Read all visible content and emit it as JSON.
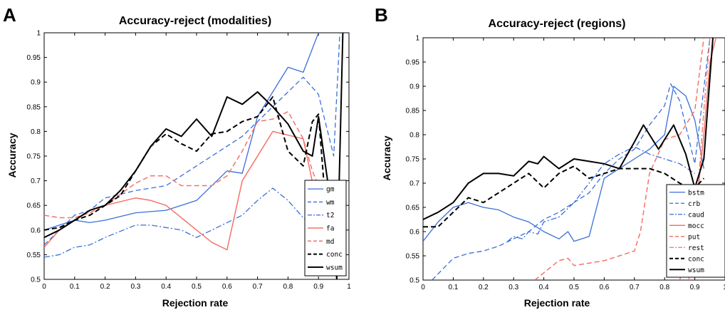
{
  "chart_data": [
    {
      "panel": "A",
      "type": "line",
      "title": "Accuracy-reject (modalities)",
      "xlabel": "Rejection rate",
      "ylabel": "Accuracy",
      "xlim": [
        0,
        1
      ],
      "ylim": [
        0.5,
        1
      ],
      "xticks": [
        "0",
        "0.1",
        "0.2",
        "0.3",
        "0.4",
        "0.5",
        "0.6",
        "0.7",
        "0.8",
        "0.9",
        "1"
      ],
      "yticks": [
        "0.5",
        "0.55",
        "0.6",
        "0.65",
        "0.7",
        "0.75",
        "0.8",
        "0.85",
        "0.9",
        "0.95",
        "1"
      ],
      "legend_position": "bottom-right",
      "series": [
        {
          "name": "gm",
          "color": "#3a6fd8",
          "dash": "solid",
          "width": 1.3,
          "x": [
            0,
            0.05,
            0.1,
            0.15,
            0.2,
            0.3,
            0.4,
            0.5,
            0.6,
            0.65,
            0.7,
            0.8,
            0.85,
            0.9
          ],
          "y": [
            0.6,
            0.61,
            0.62,
            0.615,
            0.62,
            0.635,
            0.64,
            0.66,
            0.72,
            0.715,
            0.83,
            0.93,
            0.92,
            1.0
          ]
        },
        {
          "name": "wm",
          "color": "#3a6fd8",
          "dash": "dashed",
          "width": 1.3,
          "x": [
            0,
            0.05,
            0.1,
            0.15,
            0.2,
            0.3,
            0.4,
            0.5,
            0.6,
            0.65,
            0.7,
            0.8,
            0.85,
            0.9,
            0.95,
            0.97
          ],
          "y": [
            0.57,
            0.6,
            0.63,
            0.64,
            0.665,
            0.68,
            0.69,
            0.73,
            0.77,
            0.79,
            0.82,
            0.88,
            0.91,
            0.875,
            0.75,
            1.0
          ]
        },
        {
          "name": "t2",
          "color": "#3a6fd8",
          "dash": "dashdot",
          "width": 1.3,
          "x": [
            0,
            0.05,
            0.1,
            0.15,
            0.2,
            0.3,
            0.35,
            0.4,
            0.45,
            0.5,
            0.55,
            0.6,
            0.65,
            0.7,
            0.75,
            0.8,
            0.85,
            0.9
          ],
          "y": [
            0.545,
            0.55,
            0.565,
            0.57,
            0.585,
            0.61,
            0.61,
            0.605,
            0.6,
            0.585,
            0.6,
            0.615,
            0.63,
            0.66,
            0.685,
            0.66,
            0.625,
            0.6
          ]
        },
        {
          "name": "fa",
          "color": "#f4736a",
          "dash": "solid",
          "width": 1.5,
          "x": [
            0,
            0.05,
            0.1,
            0.15,
            0.2,
            0.3,
            0.35,
            0.4,
            0.5,
            0.55,
            0.6,
            0.65,
            0.75,
            0.85,
            0.92
          ],
          "y": [
            0.565,
            0.6,
            0.62,
            0.64,
            0.65,
            0.665,
            0.66,
            0.65,
            0.6,
            0.575,
            0.56,
            0.7,
            0.8,
            0.785,
            0.58
          ]
        },
        {
          "name": "md",
          "color": "#f4736a",
          "dash": "dashed",
          "width": 1.5,
          "x": [
            0,
            0.05,
            0.1,
            0.15,
            0.2,
            0.3,
            0.35,
            0.4,
            0.45,
            0.5,
            0.55,
            0.6,
            0.65,
            0.7,
            0.75,
            0.8,
            0.85,
            0.88,
            0.9,
            0.93
          ],
          "y": [
            0.63,
            0.625,
            0.625,
            0.635,
            0.65,
            0.695,
            0.71,
            0.71,
            0.69,
            0.69,
            0.69,
            0.71,
            0.76,
            0.82,
            0.825,
            0.84,
            0.785,
            0.72,
            0.69,
            0.63
          ]
        },
        {
          "name": "conc",
          "color": "#000000",
          "dash": "dashed",
          "width": 2.0,
          "x": [
            0,
            0.05,
            0.1,
            0.15,
            0.2,
            0.25,
            0.3,
            0.35,
            0.4,
            0.45,
            0.5,
            0.55,
            0.6,
            0.65,
            0.7,
            0.75,
            0.8,
            0.85,
            0.88,
            0.9,
            0.93
          ],
          "y": [
            0.6,
            0.605,
            0.62,
            0.63,
            0.65,
            0.67,
            0.72,
            0.77,
            0.795,
            0.775,
            0.76,
            0.795,
            0.8,
            0.82,
            0.83,
            0.87,
            0.76,
            0.73,
            0.82,
            0.835,
            0.6
          ]
        },
        {
          "name": "wsum",
          "color": "#000000",
          "dash": "solid",
          "width": 2.0,
          "x": [
            0,
            0.05,
            0.1,
            0.15,
            0.2,
            0.25,
            0.3,
            0.35,
            0.4,
            0.45,
            0.5,
            0.55,
            0.6,
            0.65,
            0.7,
            0.75,
            0.8,
            0.85,
            0.88,
            0.9,
            0.93,
            0.96,
            0.98
          ],
          "y": [
            0.585,
            0.6,
            0.62,
            0.64,
            0.65,
            0.68,
            0.72,
            0.77,
            0.805,
            0.79,
            0.825,
            0.79,
            0.87,
            0.855,
            0.88,
            0.85,
            0.815,
            0.76,
            0.75,
            0.83,
            0.7,
            0.5,
            1.0
          ]
        }
      ]
    },
    {
      "panel": "B",
      "type": "line",
      "title": "Accuracy-reject (regions)",
      "xlabel": "Rejection rate",
      "ylabel": "Accuracy",
      "xlim": [
        0,
        1
      ],
      "ylim": [
        0.5,
        1
      ],
      "xticks": [
        "0",
        "0.1",
        "0.2",
        "0.3",
        "0.4",
        "0.5",
        "0.6",
        "0.7",
        "0.8",
        "0.9",
        "1"
      ],
      "yticks": [
        "0.5",
        "0.55",
        "0.6",
        "0.65",
        "0.7",
        "0.75",
        "0.8",
        "0.85",
        "0.9",
        "0.95",
        "1"
      ],
      "legend_position": "bottom-right",
      "series": [
        {
          "name": "bstm",
          "color": "#3a6fd8",
          "dash": "solid",
          "width": 1.3,
          "x": [
            0,
            0.05,
            0.1,
            0.15,
            0.2,
            0.25,
            0.3,
            0.35,
            0.4,
            0.45,
            0.48,
            0.5,
            0.55,
            0.6,
            0.65,
            0.7,
            0.75,
            0.8,
            0.83,
            0.87,
            0.9,
            0.93
          ],
          "y": [
            0.58,
            0.62,
            0.65,
            0.66,
            0.65,
            0.645,
            0.63,
            0.62,
            0.6,
            0.585,
            0.6,
            0.58,
            0.59,
            0.71,
            0.73,
            0.75,
            0.77,
            0.8,
            0.9,
            0.88,
            0.83,
            0.73
          ]
        },
        {
          "name": "crb",
          "color": "#3a6fd8",
          "dash": "dashed",
          "width": 1.3,
          "x": [
            0.03,
            0.1,
            0.15,
            0.2,
            0.25,
            0.3,
            0.35,
            0.4,
            0.45,
            0.5,
            0.55,
            0.6,
            0.65,
            0.7,
            0.75,
            0.8,
            0.82,
            0.85,
            0.9,
            0.95
          ],
          "y": [
            0.5,
            0.545,
            0.555,
            0.56,
            0.57,
            0.585,
            0.6,
            0.625,
            0.64,
            0.66,
            0.68,
            0.72,
            0.75,
            0.77,
            0.82,
            0.86,
            0.905,
            0.87,
            0.74,
            1.0
          ]
        },
        {
          "name": "caud",
          "color": "#3a6fd8",
          "dash": "dashdot",
          "width": 1.3,
          "x": [
            0.28,
            0.3,
            0.33,
            0.35,
            0.38,
            0.4,
            0.45,
            0.5,
            0.55,
            0.6,
            0.65,
            0.7,
            0.75,
            0.8,
            0.85,
            0.9
          ],
          "y": [
            0.58,
            0.59,
            0.585,
            0.6,
            0.595,
            0.62,
            0.63,
            0.66,
            0.7,
            0.74,
            0.76,
            0.775,
            0.76,
            0.75,
            0.74,
            0.72
          ]
        },
        {
          "name": "mocc",
          "color": "#f4736a",
          "dash": "solid",
          "width": 1.5,
          "x": [
            0.85,
            0.9,
            0.93,
            0.95,
            0.97
          ],
          "y": [
            0.5,
            0.62,
            0.8,
            0.95,
            1.0
          ]
        },
        {
          "name": "put",
          "color": "#f4736a",
          "dash": "dashed",
          "width": 1.5,
          "x": [
            0.37,
            0.4,
            0.45,
            0.48,
            0.5,
            0.55,
            0.6,
            0.65,
            0.7,
            0.72,
            0.75,
            0.8,
            0.85,
            0.9,
            0.93
          ],
          "y": [
            0.5,
            0.515,
            0.54,
            0.545,
            0.53,
            0.535,
            0.54,
            0.55,
            0.56,
            0.6,
            0.72,
            0.79,
            0.8,
            0.85,
            1.0
          ]
        },
        {
          "name": "rest",
          "color": "#f4736a",
          "dash": "dashdot",
          "width": 1.3,
          "x": [
            0.88,
            0.9,
            0.93,
            0.95
          ],
          "y": [
            0.5,
            0.6,
            0.85,
            1.0
          ]
        },
        {
          "name": "conc",
          "color": "#000000",
          "dash": "dashed",
          "width": 2.0,
          "x": [
            0,
            0.05,
            0.1,
            0.15,
            0.2,
            0.25,
            0.3,
            0.35,
            0.4,
            0.45,
            0.5,
            0.55,
            0.6,
            0.65,
            0.7,
            0.75,
            0.8,
            0.85,
            0.88,
            0.9,
            0.93
          ],
          "y": [
            0.61,
            0.61,
            0.64,
            0.67,
            0.66,
            0.68,
            0.7,
            0.72,
            0.69,
            0.72,
            0.735,
            0.71,
            0.72,
            0.73,
            0.73,
            0.73,
            0.72,
            0.7,
            0.69,
            0.69,
            0.71
          ]
        },
        {
          "name": "wsum",
          "color": "#000000",
          "dash": "solid",
          "width": 2.0,
          "x": [
            0,
            0.05,
            0.1,
            0.15,
            0.2,
            0.25,
            0.3,
            0.35,
            0.38,
            0.4,
            0.45,
            0.5,
            0.55,
            0.6,
            0.65,
            0.7,
            0.73,
            0.78,
            0.83,
            0.87,
            0.9,
            0.93,
            0.96
          ],
          "y": [
            0.625,
            0.64,
            0.66,
            0.7,
            0.72,
            0.72,
            0.715,
            0.745,
            0.74,
            0.755,
            0.73,
            0.75,
            0.745,
            0.74,
            0.73,
            0.785,
            0.82,
            0.77,
            0.82,
            0.76,
            0.69,
            0.75,
            1.0
          ]
        }
      ]
    }
  ]
}
